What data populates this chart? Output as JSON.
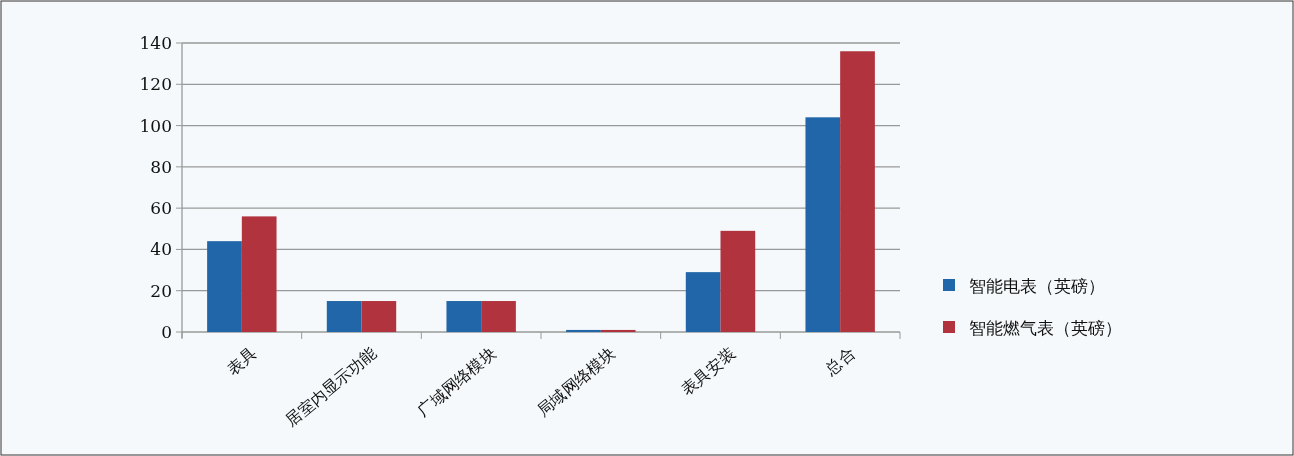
{
  "chart_data": {
    "type": "bar",
    "categories": [
      "表具",
      "居室内显示功能",
      "广域网络模块",
      "局域网络模块",
      "表具安装",
      "总合"
    ],
    "series": [
      {
        "name": "智能电表（英磅）",
        "color": "#2166a8",
        "values": [
          44,
          15,
          15,
          1,
          29,
          104
        ]
      },
      {
        "name": "智能燃气表（英磅）",
        "color": "#b0333d",
        "values": [
          56,
          15,
          15,
          1,
          49,
          136
        ]
      }
    ],
    "ylim": [
      0,
      140
    ],
    "yticks": [
      0,
      20,
      40,
      60,
      80,
      100,
      120,
      140
    ],
    "grid": "y",
    "legend": "right"
  }
}
